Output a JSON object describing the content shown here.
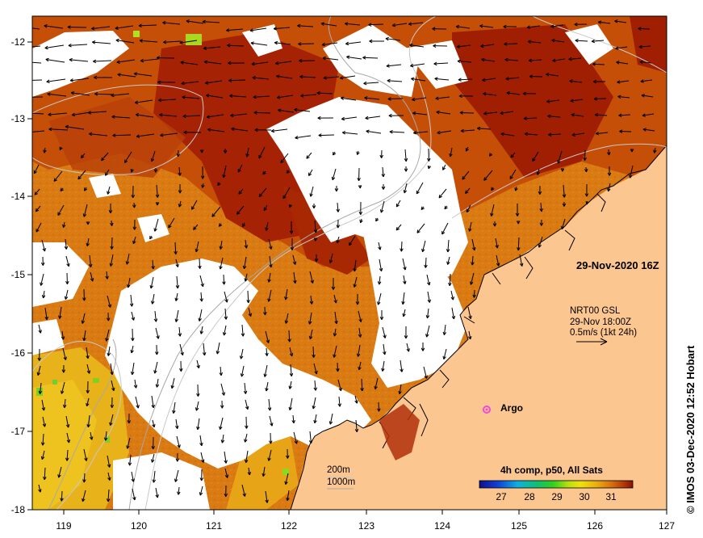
{
  "map": {
    "lon_ticks": [
      "119",
      "120",
      "121",
      "122",
      "123",
      "124",
      "125",
      "126",
      "127"
    ],
    "lat_ticks": [
      "-12",
      "-13",
      "-14",
      "-15",
      "-16",
      "-17",
      "-18"
    ],
    "timestamp": "29-Nov-2020 16Z",
    "current_title": "NRT00 GSL",
    "current_time": "29-Nov 18:00Z",
    "current_scale": "0.5m/s (1kt 24h)",
    "argo_label": "Argo",
    "contour_200": "200m",
    "contour_1000": "1000m",
    "colorbar_title": "4h comp, p50, All Sats",
    "colorbar_ticks": [
      "27",
      "28",
      "29",
      "30",
      "31"
    ],
    "credit": "© IMOS 03-Dec-2020 12:52 Hobart",
    "colors": {
      "land": "#fcc690",
      "warm": "#d97a12",
      "hot": "#b43a05",
      "hottest": "#a01e02",
      "cool": "#e8b21a",
      "cloud": "#ffffff",
      "argo": "#e84dde"
    }
  }
}
